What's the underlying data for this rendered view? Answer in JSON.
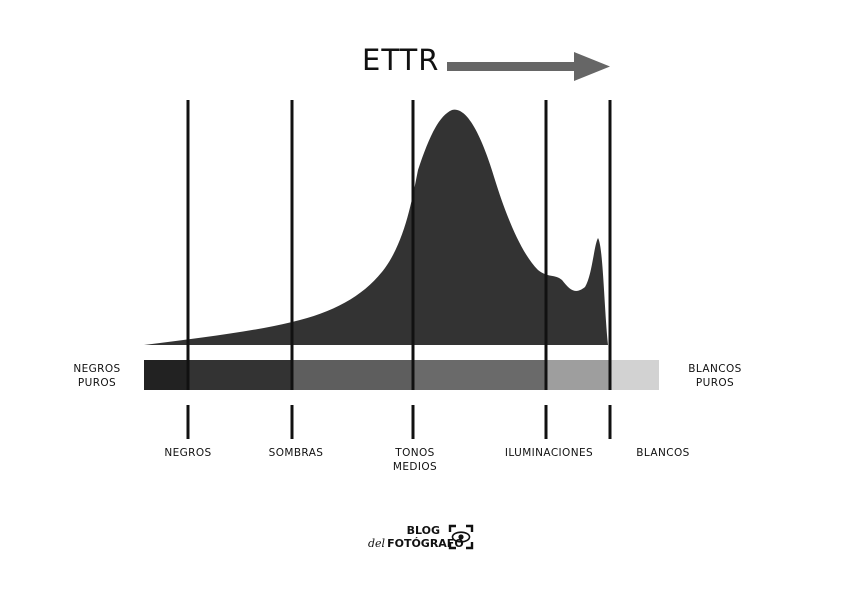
{
  "title": "ETTR",
  "colors": {
    "histogram": "#333333",
    "arrow": "#666666",
    "divider": "#111111",
    "tones": [
      "#222222",
      "#333333",
      "#5e5e5e",
      "#6a6a6a",
      "#9e9e9e",
      "#d2d2d2"
    ]
  },
  "extremes": {
    "left": [
      "NEGROS",
      "PUROS"
    ],
    "right": [
      "BLANCOS",
      "PUROS"
    ]
  },
  "zones": [
    [
      "NEGROS"
    ],
    [
      "SOMBRAS"
    ],
    [
      "TONOS",
      "MEDIOS"
    ],
    [
      "ILUMINACIONES"
    ],
    [
      "BLANCOS"
    ]
  ],
  "logo": {
    "top": "BLOG",
    "del": "del",
    "name": "FOTÓGRAFO",
    "icon": "camera-eye-icon"
  }
}
